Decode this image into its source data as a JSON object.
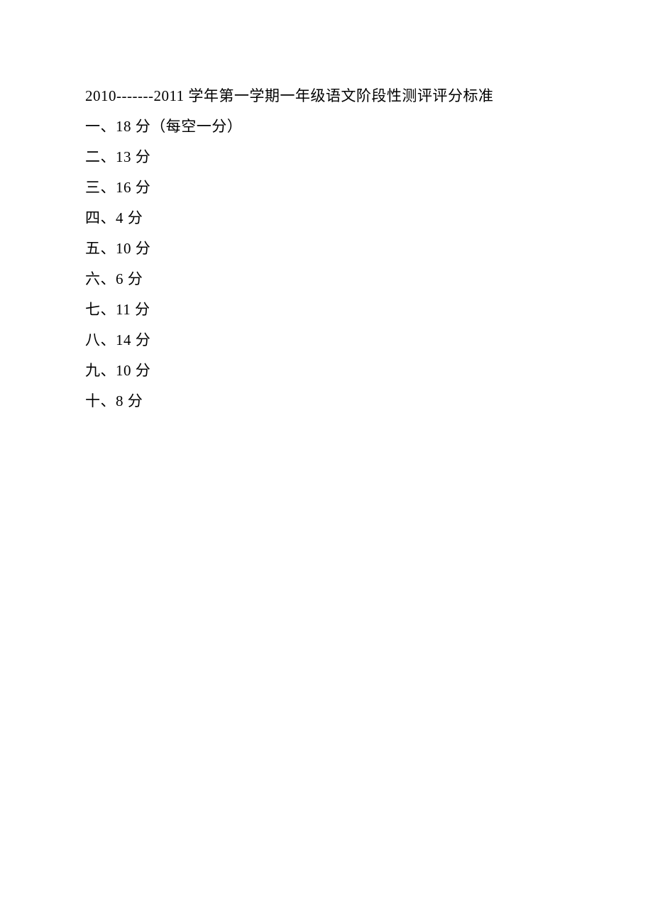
{
  "document": {
    "title": "2010-------2011 学年第一学期一年级语文阶段性测评评分标准",
    "lines": [
      "一、18 分（每空一分）",
      "二、13 分",
      "三、16 分",
      "四、4 分",
      "五、10 分",
      "六、6 分",
      "七、11 分",
      "八、14 分",
      "九、10 分",
      "十、8 分"
    ],
    "styling": {
      "background_color": "#ffffff",
      "text_color": "#000000",
      "font_size": 21,
      "line_spacing": 22,
      "font_family": "SimSun"
    }
  }
}
